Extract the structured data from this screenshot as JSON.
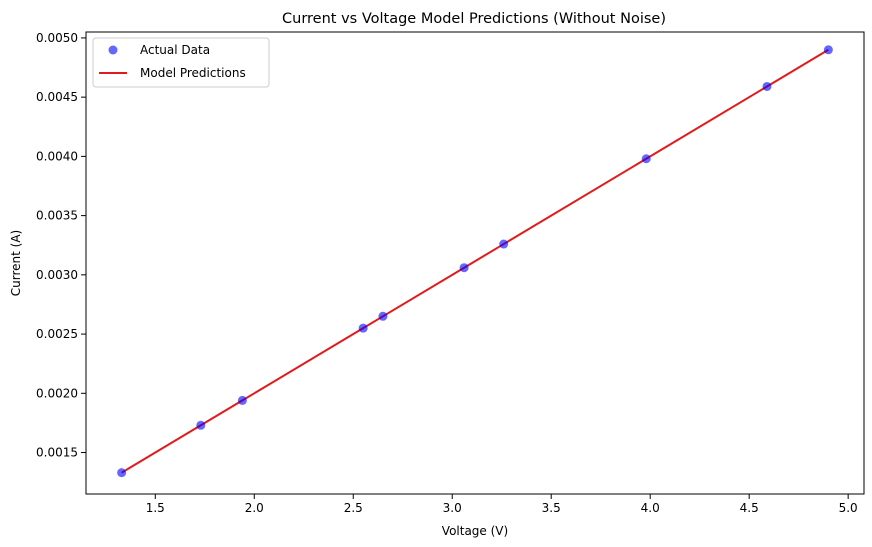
{
  "chart_data": {
    "type": "scatter",
    "title": "Current vs Voltage Model Predictions (Without Noise)",
    "xlabel": "Voltage (V)",
    "ylabel": "Current (A)",
    "xlim": [
      1.15,
      5.08
    ],
    "ylim": [
      0.00115,
      0.00505
    ],
    "xticks": [
      1.5,
      2.0,
      2.5,
      3.0,
      3.5,
      4.0,
      4.5,
      5.0
    ],
    "xtick_labels": [
      "1.5",
      "2.0",
      "2.5",
      "3.0",
      "3.5",
      "4.0",
      "4.5",
      "5.0"
    ],
    "yticks": [
      0.0015,
      0.002,
      0.0025,
      0.003,
      0.0035,
      0.004,
      0.0045,
      0.005
    ],
    "ytick_labels": [
      "0.0015",
      "0.0020",
      "0.0025",
      "0.0030",
      "0.0035",
      "0.0040",
      "0.0045",
      "0.0050"
    ],
    "grid": false,
    "legend_position": "top-left",
    "series": [
      {
        "name": "Actual Data",
        "kind": "scatter",
        "color": "#0000ff",
        "alpha": 0.6,
        "x": [
          1.33,
          1.73,
          1.94,
          2.55,
          2.65,
          3.06,
          3.26,
          3.98,
          4.59,
          4.9
        ],
        "y": [
          0.00133,
          0.00173,
          0.00194,
          0.00255,
          0.00265,
          0.00306,
          0.00326,
          0.00398,
          0.00459,
          0.0049
        ]
      },
      {
        "name": "Model Predictions",
        "kind": "line",
        "color": "#e31a1c",
        "x": [
          1.33,
          1.73,
          1.94,
          2.55,
          2.65,
          3.06,
          3.26,
          3.98,
          4.59,
          4.9
        ],
        "y": [
          0.00133,
          0.00173,
          0.00194,
          0.00255,
          0.00265,
          0.00306,
          0.00326,
          0.00398,
          0.00459,
          0.0049
        ]
      }
    ]
  }
}
